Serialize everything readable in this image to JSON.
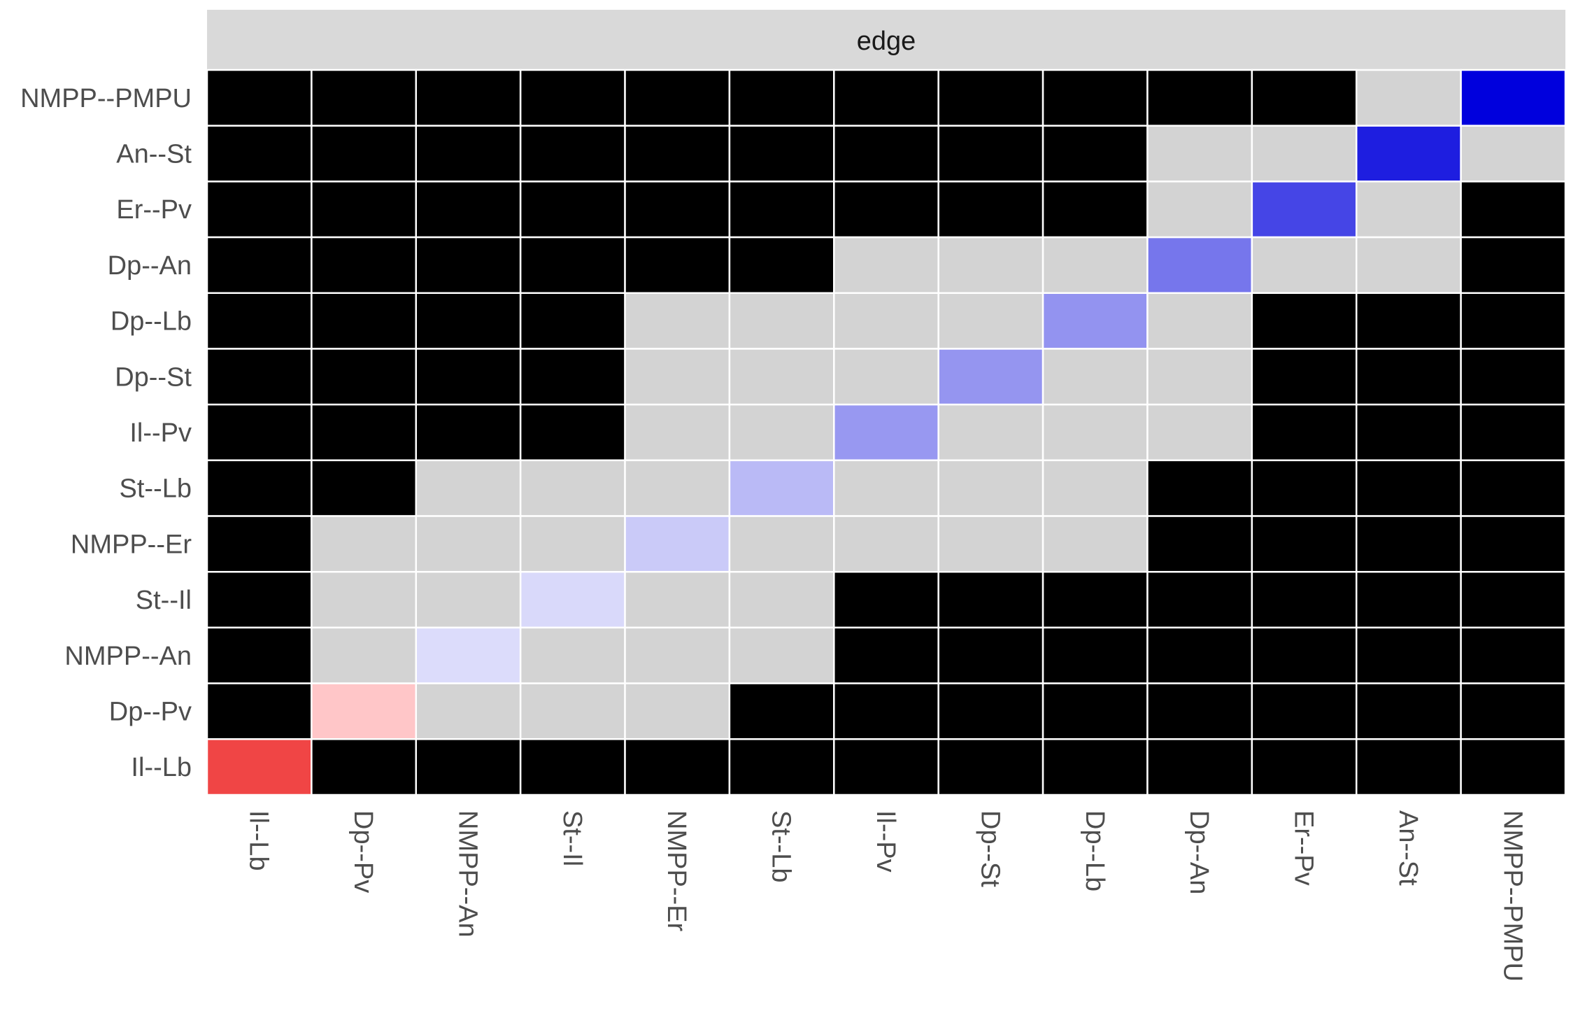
{
  "chart_data": {
    "type": "heatmap",
    "facet_label": "edge",
    "x_categories": [
      "Il--Lb",
      "Dp--Pv",
      "NMPP--An",
      "St--Il",
      "NMPP--Er",
      "St--Lb",
      "Il--Pv",
      "Dp--St",
      "Dp--Lb",
      "Dp--An",
      "Er--Pv",
      "An--St",
      "NMPP--PMPU"
    ],
    "y_categories": [
      "NMPP--PMPU",
      "An--St",
      "Er--Pv",
      "Dp--An",
      "Dp--Lb",
      "Dp--St",
      "Il--Pv",
      "St--Lb",
      "NMPP--Er",
      "St--Il",
      "NMPP--An",
      "Dp--Pv",
      "Il--Lb"
    ],
    "cell_states": {
      "black": "#000000",
      "grey": "#d3d3d3"
    },
    "matrix": [
      [
        "black",
        "black",
        "black",
        "black",
        "black",
        "black",
        "black",
        "black",
        "black",
        "black",
        "black",
        "grey",
        "#0000dd"
      ],
      [
        "black",
        "black",
        "black",
        "black",
        "black",
        "black",
        "black",
        "black",
        "black",
        "grey",
        "grey",
        "#1e1ee0",
        "grey"
      ],
      [
        "black",
        "black",
        "black",
        "black",
        "black",
        "black",
        "black",
        "black",
        "black",
        "grey",
        "#4545e6",
        "grey",
        "black"
      ],
      [
        "black",
        "black",
        "black",
        "black",
        "black",
        "black",
        "grey",
        "grey",
        "grey",
        "#7676ec",
        "grey",
        "grey",
        "black"
      ],
      [
        "black",
        "black",
        "black",
        "black",
        "grey",
        "grey",
        "grey",
        "grey",
        "#9393f0",
        "grey",
        "black",
        "black",
        "black"
      ],
      [
        "black",
        "black",
        "black",
        "black",
        "grey",
        "grey",
        "grey",
        "#9595f0",
        "grey",
        "grey",
        "black",
        "black",
        "black"
      ],
      [
        "black",
        "black",
        "black",
        "black",
        "grey",
        "grey",
        "#9898f1",
        "grey",
        "grey",
        "grey",
        "black",
        "black",
        "black"
      ],
      [
        "black",
        "black",
        "grey",
        "grey",
        "grey",
        "#babaf6",
        "grey",
        "grey",
        "grey",
        "black",
        "black",
        "black",
        "black"
      ],
      [
        "black",
        "grey",
        "grey",
        "grey",
        "#cacaf8",
        "grey",
        "grey",
        "grey",
        "grey",
        "black",
        "black",
        "black",
        "black"
      ],
      [
        "black",
        "grey",
        "grey",
        "#d9d9fa",
        "grey",
        "grey",
        "black",
        "black",
        "black",
        "black",
        "black",
        "black",
        "black"
      ],
      [
        "black",
        "grey",
        "#dcdcfb",
        "grey",
        "grey",
        "grey",
        "black",
        "black",
        "black",
        "black",
        "black",
        "black",
        "black"
      ],
      [
        "black",
        "#ffc6c8",
        "grey",
        "grey",
        "grey",
        "black",
        "black",
        "black",
        "black",
        "black",
        "black",
        "black",
        "black"
      ],
      [
        "#f04545",
        "black",
        "black",
        "black",
        "black",
        "black",
        "black",
        "black",
        "black",
        "black",
        "black",
        "black",
        "black"
      ]
    ]
  }
}
